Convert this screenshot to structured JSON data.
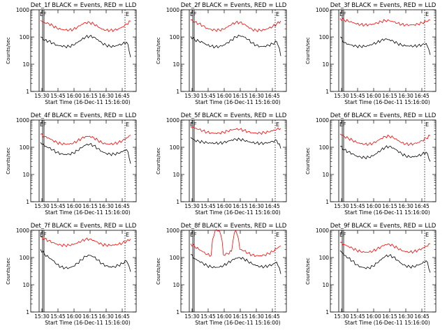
{
  "chart_data": [
    {
      "type": "line",
      "title": "Det_1f BLACK = Events, RED = LLD",
      "xlabel": "Start Time (16-Dec-11 15:16:00)",
      "ylabel": "Counts/sec",
      "yscale": "log",
      "ylim": [
        1,
        1000
      ],
      "x_ticks": [
        "15:30",
        "15:45",
        "16:00",
        "16:15",
        "16:30",
        "16:45"
      ],
      "y_ticks": [
        "1",
        "10",
        "100",
        "1000"
      ],
      "markers": [
        "E",
        "F",
        "E"
      ],
      "series": [
        {
          "color": "#000000",
          "values": [
            100,
            75,
            70,
            60,
            50,
            48,
            45,
            45,
            50,
            62,
            78,
            100,
            108,
            100,
            80,
            60,
            50,
            45,
            45,
            50,
            55,
            65,
            18
          ]
        },
        {
          "color": "#ff0000",
          "values": [
            400,
            340,
            310,
            260,
            210,
            190,
            180,
            180,
            190,
            230,
            290,
            340,
            340,
            300,
            240,
            190,
            175,
            175,
            180,
            200,
            235,
            300,
            380
          ]
        }
      ]
    },
    {
      "type": "line",
      "title": "Det_2f BLACK = Events, RED = LLD",
      "xlabel": "Start Time (16-Dec-11 15:16:00)",
      "ylabel": "Counts/sec",
      "yscale": "log",
      "ylim": [
        1,
        1000
      ],
      "x_ticks": [
        "15:30",
        "15:45",
        "16:00",
        "16:15",
        "16:30",
        "16:45"
      ],
      "y_ticks": [
        "1",
        "10",
        "100",
        "1000"
      ],
      "markers": [
        "E",
        "F",
        "E"
      ],
      "series": [
        {
          "color": "#000000",
          "values": [
            105,
            78,
            70,
            62,
            50,
            46,
            44,
            45,
            50,
            62,
            78,
            100,
            110,
            100,
            80,
            60,
            50,
            45,
            46,
            50,
            56,
            68,
            20
          ]
        },
        {
          "color": "#ff0000",
          "values": [
            420,
            350,
            310,
            260,
            210,
            190,
            180,
            180,
            190,
            230,
            290,
            340,
            345,
            300,
            240,
            190,
            175,
            175,
            182,
            205,
            240,
            300,
            390
          ]
        }
      ]
    },
    {
      "type": "line",
      "title": "Det_3f BLACK = Events, RED = LLD",
      "xlabel": "Start Time (16-Dec-11 15:16:00)",
      "ylabel": "Counts/sec",
      "yscale": "log",
      "ylim": [
        1,
        1000
      ],
      "x_ticks": [
        "15:30",
        "15:45",
        "16:00",
        "16:15",
        "16:30",
        "16:45"
      ],
      "y_ticks": [
        "1",
        "10",
        "100",
        "1000"
      ],
      "markers": [
        "E",
        "F",
        "E"
      ],
      "series": [
        {
          "color": "#000000",
          "values": [
            100,
            62,
            55,
            50,
            46,
            45,
            45,
            48,
            55,
            62,
            75,
            85,
            80,
            70,
            58,
            50,
            47,
            46,
            46,
            48,
            52,
            58,
            22
          ]
        },
        {
          "color": "#ff0000",
          "values": [
            480,
            420,
            380,
            340,
            300,
            285,
            280,
            285,
            300,
            330,
            370,
            400,
            395,
            360,
            320,
            290,
            280,
            280,
            285,
            300,
            330,
            370,
            420
          ]
        }
      ]
    },
    {
      "type": "line",
      "title": "Det_4f BLACK = Events, RED = LLD",
      "xlabel": "Start Time (16-Dec-11 15:16:00)",
      "ylabel": "Counts/sec",
      "yscale": "log",
      "ylim": [
        1,
        1000
      ],
      "x_ticks": [
        "15:30",
        "15:45",
        "16:00",
        "16:15",
        "16:30",
        "16:45"
      ],
      "y_ticks": [
        "1",
        "10",
        "100",
        "1000"
      ],
      "markers": [
        "E",
        "F",
        "E"
      ],
      "series": [
        {
          "color": "#000000",
          "values": [
            150,
            110,
            95,
            80,
            65,
            58,
            55,
            56,
            62,
            75,
            95,
            120,
            130,
            115,
            90,
            70,
            60,
            56,
            56,
            60,
            68,
            82,
            25
          ]
        },
        {
          "color": "#ff0000",
          "values": [
            300,
            250,
            220,
            180,
            150,
            135,
            130,
            130,
            140,
            170,
            210,
            250,
            255,
            225,
            180,
            145,
            132,
            130,
            135,
            150,
            175,
            220,
            280
          ]
        }
      ]
    },
    {
      "type": "line",
      "title": "Det_5f BLACK = Events, RED = LLD",
      "xlabel": "Start Time (16-Dec-11 15:16:00)",
      "ylabel": "Counts/sec",
      "yscale": "log",
      "ylim": [
        1,
        1000
      ],
      "x_ticks": [
        "15:30",
        "15:45",
        "16:00",
        "16:15",
        "16:30",
        "16:45"
      ],
      "y_ticks": [
        "1",
        "10",
        "100",
        "1000"
      ],
      "markers": [
        "E",
        "F",
        "E"
      ],
      "series": [
        {
          "color": "#000000",
          "values": [
            230,
            180,
            165,
            155,
            145,
            140,
            140,
            142,
            150,
            165,
            185,
            200,
            195,
            180,
            160,
            148,
            142,
            140,
            142,
            150,
            165,
            180,
            90
          ]
        },
        {
          "color": "#ff0000",
          "values": [
            560,
            500,
            450,
            400,
            360,
            340,
            330,
            335,
            355,
            390,
            430,
            460,
            455,
            420,
            375,
            345,
            335,
            335,
            345,
            365,
            400,
            450,
            500
          ]
        }
      ]
    },
    {
      "type": "line",
      "title": "Det_6f BLACK = Events, RED = LLD",
      "xlabel": "Start Time (16-Dec-11 15:16:00)",
      "ylabel": "Counts/sec",
      "yscale": "log",
      "ylim": [
        1,
        1000
      ],
      "x_ticks": [
        "15:30",
        "15:45",
        "16:00",
        "16:15",
        "16:30",
        "16:45"
      ],
      "y_ticks": [
        "1",
        "10",
        "100",
        "1000"
      ],
      "markers": [
        "E",
        "F",
        "E"
      ],
      "series": [
        {
          "color": "#000000",
          "values": [
            110,
            80,
            68,
            58,
            48,
            44,
            42,
            43,
            48,
            60,
            78,
            100,
            108,
            95,
            75,
            58,
            48,
            44,
            44,
            48,
            55,
            66,
            30
          ]
        },
        {
          "color": "#ff0000",
          "values": [
            310,
            250,
            215,
            180,
            150,
            135,
            128,
            130,
            140,
            170,
            210,
            250,
            255,
            225,
            180,
            145,
            132,
            130,
            135,
            150,
            175,
            215,
            270
          ]
        }
      ]
    },
    {
      "type": "line",
      "title": "Det_7f BLACK = Events, RED = LLD",
      "xlabel": "Start Time (16-Dec-11 15:16:00)",
      "ylabel": "Counts/sec",
      "yscale": "log",
      "ylim": [
        1,
        1000
      ],
      "x_ticks": [
        "15:30",
        "15:45",
        "16:00",
        "16:15",
        "16:30",
        "16:45"
      ],
      "y_ticks": [
        "1",
        "10",
        "100",
        "1000"
      ],
      "markers": [
        "E",
        "F",
        "E"
      ],
      "series": [
        {
          "color": "#000000",
          "values": [
            200,
            130,
            100,
            78,
            55,
            45,
            42,
            42,
            48,
            62,
            82,
            110,
            120,
            105,
            80,
            60,
            50,
            46,
            46,
            52,
            60,
            75,
            30
          ]
        },
        {
          "color": "#ff0000",
          "values": [
            560,
            480,
            420,
            360,
            310,
            290,
            280,
            282,
            300,
            340,
            400,
            470,
            480,
            430,
            360,
            305,
            285,
            280,
            285,
            305,
            340,
            400,
            480
          ]
        }
      ]
    },
    {
      "type": "line",
      "title": "Det_8f BLACK = Events, RED = LLD",
      "xlabel": "Start Time (16-Dec-11 15:16:00)",
      "ylabel": "Counts/sec",
      "yscale": "log",
      "ylim": [
        1,
        1000
      ],
      "x_ticks": [
        "15:30",
        "15:45",
        "16:00",
        "16:15",
        "16:30",
        "16:45"
      ],
      "y_ticks": [
        "1",
        "10",
        "100",
        "1000"
      ],
      "markers": [
        "E",
        "F",
        "E"
      ],
      "series": [
        {
          "color": "#000000",
          "values": [
            130,
            90,
            75,
            62,
            50,
            45,
            43,
            44,
            50,
            62,
            78,
            95,
            100,
            90,
            72,
            58,
            50,
            46,
            46,
            50,
            56,
            68,
            25
          ]
        },
        {
          "color": "#ff0000",
          "values": [
            320,
            250,
            200,
            160,
            130,
            120,
            1000,
            1000,
            125,
            140,
            170,
            1000,
            200,
            175,
            145,
            125,
            118,
            118,
            125,
            140,
            165,
            210,
            270
          ]
        }
      ]
    },
    {
      "type": "line",
      "title": "Det_9f BLACK = Events, RED = LLD",
      "xlabel": "Start Time (16-Dec-11 15:16:00)",
      "ylabel": "Counts/sec",
      "yscale": "log",
      "ylim": [
        1,
        1000
      ],
      "x_ticks": [
        "15:30",
        "15:45",
        "16:00",
        "16:15",
        "16:30",
        "16:45"
      ],
      "y_ticks": [
        "1",
        "10",
        "100",
        "1000"
      ],
      "markers": [
        "E",
        "F",
        "E"
      ],
      "series": [
        {
          "color": "#000000",
          "values": [
            180,
            120,
            95,
            75,
            55,
            46,
            42,
            42,
            48,
            62,
            82,
            110,
            120,
            105,
            80,
            60,
            50,
            46,
            46,
            52,
            60,
            76,
            28
          ]
        },
        {
          "color": "#ff0000",
          "values": [
            360,
            300,
            260,
            220,
            185,
            165,
            155,
            158,
            172,
            205,
            250,
            300,
            310,
            270,
            220,
            180,
            162,
            158,
            165,
            185,
            215,
            260,
            320
          ]
        }
      ]
    }
  ]
}
